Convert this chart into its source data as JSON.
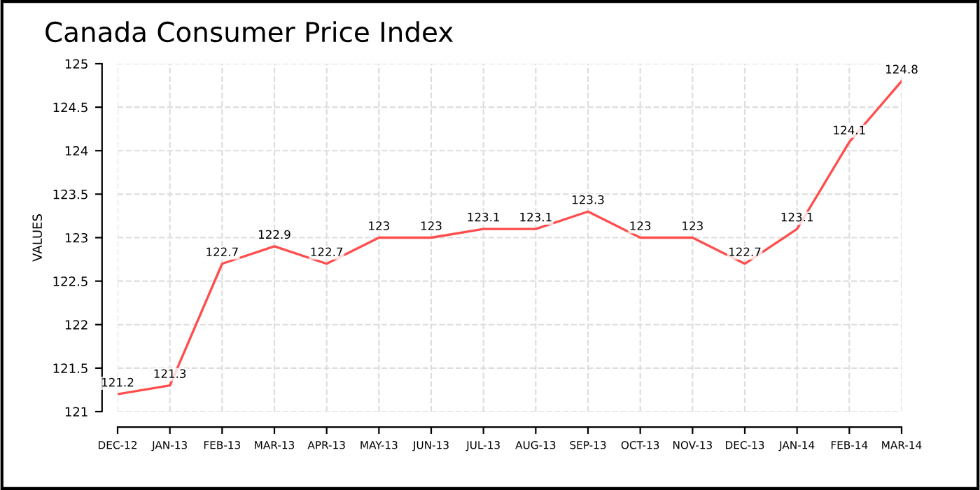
{
  "chart_data": {
    "type": "line",
    "title": "Canada Consumer Price Index",
    "ylabel": "VALUES",
    "categories": [
      "DEC-12",
      "JAN-13",
      "FEB-13",
      "MAR-13",
      "APR-13",
      "MAY-13",
      "JUN-13",
      "JUL-13",
      "AUG-13",
      "SEP-13",
      "OCT-13",
      "NOV-13",
      "DEC-13",
      "JAN-14",
      "FEB-14",
      "MAR-14"
    ],
    "series": [
      {
        "color": "#ff4d4d",
        "values": [
          121.2,
          121.3,
          122.7,
          122.9,
          122.7,
          123,
          123,
          123.1,
          123.1,
          123.3,
          123,
          123,
          122.7,
          123.1,
          124.1,
          124.8
        ]
      }
    ],
    "ylim": [
      121,
      125
    ],
    "yticks": [
      121,
      121.5,
      122,
      122.5,
      123,
      123.5,
      124,
      124.5,
      125
    ],
    "grid": true,
    "data_labels": true,
    "marker": "none",
    "line_style": "solid"
  }
}
